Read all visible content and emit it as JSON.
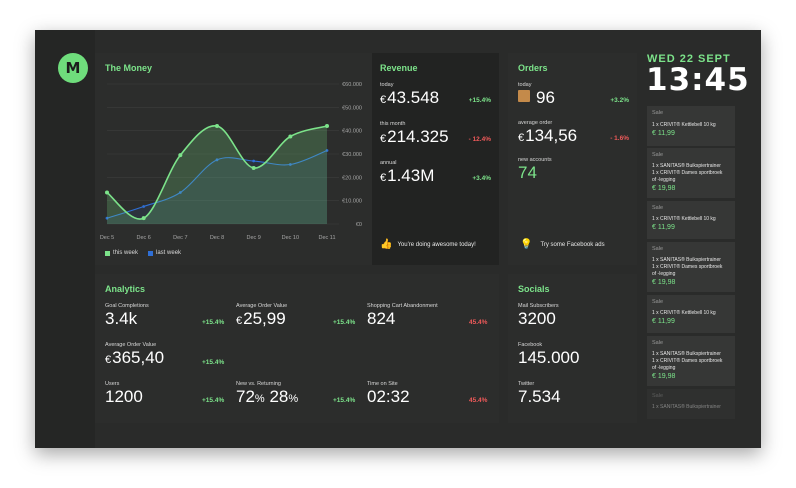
{
  "brand": {
    "logo_text": "M",
    "accent": "#6fdd7c"
  },
  "money": {
    "title": "The Money",
    "legend": {
      "this_week": "this week",
      "last_week": "last week"
    },
    "legend_colors": {
      "this_week": "#7ce38a",
      "last_week": "#2f6fd6"
    }
  },
  "chart_data": {
    "type": "line",
    "x": [
      "Dec 5",
      "Dec 6",
      "Dec 7",
      "Dec 8",
      "Dec 9",
      "Dec 10",
      "Dec 11"
    ],
    "ylim": [
      0,
      60000
    ],
    "yticks": [
      "€0",
      "€10.000",
      "€20.000",
      "€30.000",
      "€40.000",
      "€50.000",
      "€60.000"
    ],
    "series": [
      {
        "name": "this week",
        "values": [
          13500,
          2500,
          29500,
          42000,
          24000,
          37500,
          42000
        ]
      },
      {
        "name": "last week",
        "values": [
          2500,
          7500,
          13500,
          27500,
          27000,
          25500,
          31500
        ]
      }
    ],
    "grid": true,
    "legend": "bottom-left"
  },
  "revenue": {
    "title": "Revenue",
    "items": [
      {
        "label": "today",
        "currency": "€",
        "value": "43.548",
        "change": "+15.4%"
      },
      {
        "label": "this month",
        "currency": "€",
        "value": "214.325",
        "change": "- 12.4%"
      },
      {
        "label": "annual",
        "currency": "€",
        "value": "1.43M",
        "change": "+3.4%"
      }
    ],
    "tip": "You're doing awesome today!"
  },
  "orders": {
    "title": "Orders",
    "items": [
      {
        "label": "today",
        "value": "96",
        "change": "+3.2%"
      },
      {
        "label": "average order",
        "currency": "€",
        "value": "134,56",
        "change": "- 1.6%"
      },
      {
        "label": "new accounts",
        "value": "74"
      }
    ],
    "tip": "Try some Facebook ads"
  },
  "analytics": {
    "title": "Analytics",
    "metrics": [
      {
        "label": "Goal Completions",
        "value": "3.4k",
        "change": "+15.4%"
      },
      {
        "label": "Average Order Value",
        "currency": "€",
        "value": "25,99",
        "change": "+15.4%"
      },
      {
        "label": "Shopping Cart Abandonment",
        "value": "824",
        "change": "45.4%"
      },
      {
        "label": "Average Order Value",
        "currency": "€",
        "value": "365,40",
        "change": "+15.4%"
      },
      {
        "label": "Users",
        "value": "1200",
        "change": "+15.4%"
      },
      {
        "label": "New vs. Returning",
        "value_a": "72",
        "value_b": "28",
        "unit": "%",
        "change": "+15.4%"
      },
      {
        "label": "Time on Site",
        "value": "02:32",
        "change": "45.4%"
      }
    ]
  },
  "socials": {
    "title": "Socials",
    "items": [
      {
        "label": "Mail Subscribers",
        "value": "3200"
      },
      {
        "label": "Facebook",
        "value": "145.000"
      },
      {
        "label": "Twitter",
        "value": "7.534"
      }
    ]
  },
  "clock": {
    "date": "WED 22 SEPT",
    "time": "13:45"
  },
  "feed": [
    {
      "type": "Sale",
      "lines": [
        "1 x CRIVIT® Kettlebell 10 kg"
      ],
      "price": "€ 11,99"
    },
    {
      "type": "Sale",
      "lines": [
        "1 x SANITAS® Buikspiertrainer",
        "1 x CRIVIT® Dames sportbroek",
        "of -legging"
      ],
      "price": "€ 19,98"
    },
    {
      "type": "Sale",
      "lines": [
        "1 x CRIVIT® Kettlebell 10 kg"
      ],
      "price": "€ 11,99"
    },
    {
      "type": "Sale",
      "lines": [
        "1 x SANITAS® Buikspiertrainer",
        "1 x CRIVIT® Dames sportbroek",
        "of -legging"
      ],
      "price": "€ 19,98"
    },
    {
      "type": "Sale",
      "lines": [
        "1 x CRIVIT® Kettlebell 10 kg"
      ],
      "price": "€ 11,99"
    },
    {
      "type": "Sale",
      "lines": [
        "1 x SANITAS® Buikspiertrainer",
        "1 x CRIVIT® Dames sportbroek",
        "of -legging"
      ],
      "price": "€ 19,98"
    },
    {
      "type": "Sale",
      "lines": [
        "1 x SANITAS® Buikspiertrainer"
      ],
      "price": ""
    }
  ]
}
